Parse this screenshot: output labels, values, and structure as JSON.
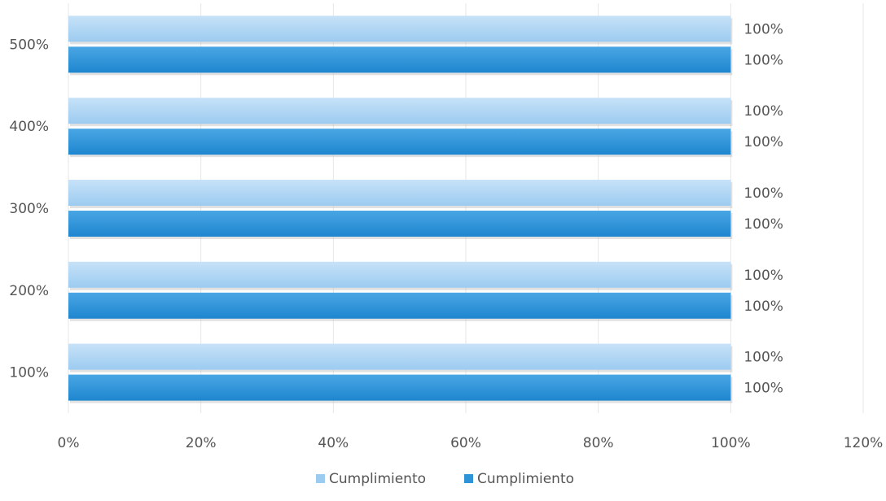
{
  "chart_data": {
    "type": "bar",
    "orientation": "horizontal",
    "categories": [
      "100%",
      "200%",
      "300%",
      "400%",
      "500%"
    ],
    "series": [
      {
        "name": "Cumplimiento",
        "color": "#9ccbf0",
        "values": [
          100,
          100,
          100,
          100,
          100
        ],
        "data_labels": [
          "100%",
          "100%",
          "100%",
          "100%",
          "100%"
        ]
      },
      {
        "name": "Cumplimiento",
        "color": "#2f93d8",
        "values": [
          100,
          100,
          100,
          100,
          100
        ],
        "data_labels": [
          "100%",
          "100%",
          "100%",
          "100%",
          "100%"
        ]
      }
    ],
    "x_range": [
      0,
      120
    ],
    "x_ticks": [
      0,
      20,
      40,
      60,
      80,
      100,
      120
    ],
    "x_tick_labels": [
      "0%",
      "20%",
      "40%",
      "60%",
      "80%",
      "100%",
      "120%"
    ],
    "grid": true,
    "legend_position": "bottom",
    "title": "",
    "xlabel": "",
    "ylabel": ""
  }
}
